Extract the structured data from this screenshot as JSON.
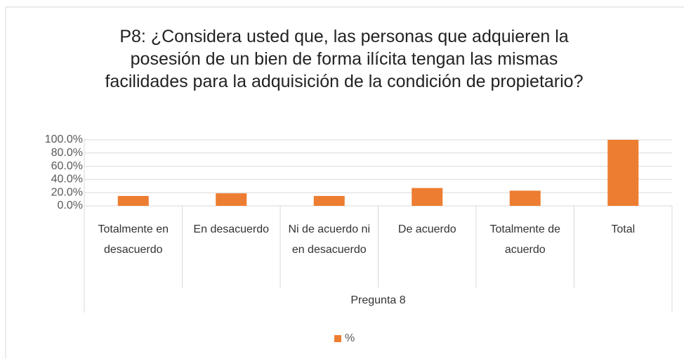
{
  "chart_data": {
    "type": "bar",
    "title": "P8: ¿Considera usted que, las personas que adquieren la posesión de un bien de forma ilícita tengan las mismas facilidades para la adquisición de la condición de propietario?",
    "categories": [
      "Totalmente en desacuerdo",
      "En desacuerdo",
      "Ni de acuerdo ni en desacuerdo",
      "De acuerdo",
      "Totalmente de acuerdo",
      "Total"
    ],
    "x_group_label": "Pregunta 8",
    "series": [
      {
        "name": "%",
        "color": "#ed7d31",
        "values": [
          15,
          19,
          15,
          27,
          23,
          100
        ]
      }
    ],
    "ylim": [
      0,
      100
    ],
    "yticks": [
      {
        "value": 0,
        "label": "0.0%"
      },
      {
        "value": 20,
        "label": "20.0%"
      },
      {
        "value": 40,
        "label": "40.0%"
      },
      {
        "value": 60,
        "label": "60.0%"
      },
      {
        "value": 80,
        "label": "80.0%"
      },
      {
        "value": 100,
        "label": "100.0%"
      }
    ],
    "grid": true,
    "legend": "bottom"
  }
}
